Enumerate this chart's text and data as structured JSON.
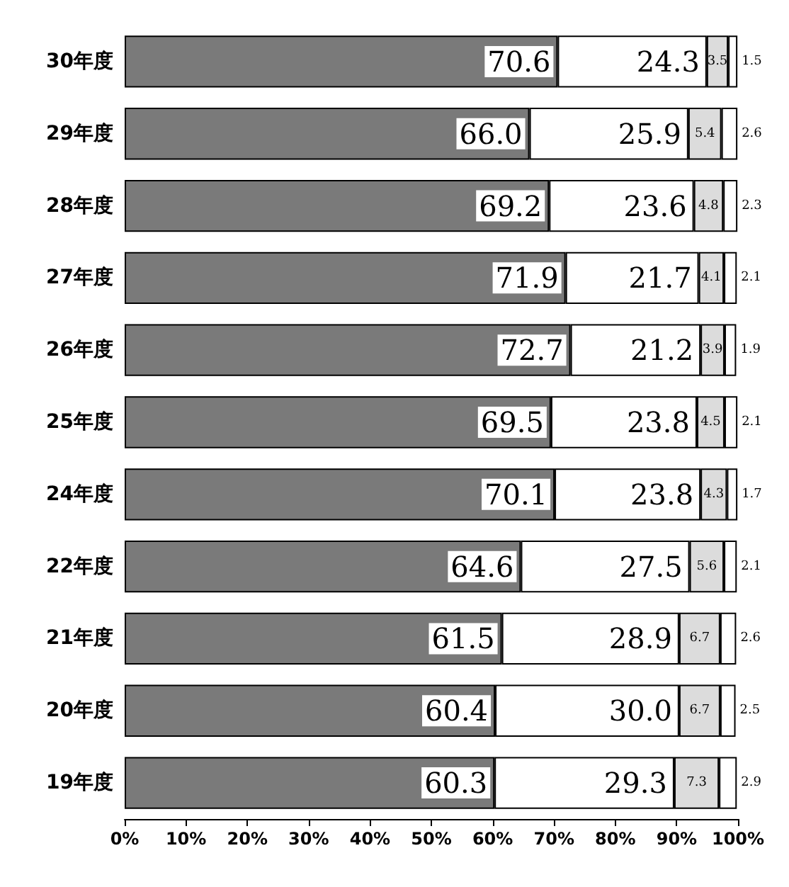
{
  "chart_data": {
    "type": "bar",
    "orientation": "horizontal",
    "stacked": true,
    "grid": false,
    "categories": [
      "30年度",
      "29年度",
      "28年度",
      "27年度",
      "26年度",
      "25年度",
      "24年度",
      "22年度",
      "21年度",
      "20年度",
      "19年度"
    ],
    "series": [
      {
        "color": "#7a7a7a",
        "values": [
          70.6,
          66.0,
          69.2,
          71.9,
          72.7,
          69.5,
          70.1,
          64.6,
          61.5,
          60.4,
          60.3
        ],
        "value_labels": [
          "70.6",
          "66.0",
          "69.2",
          "71.9",
          "72.7",
          "69.5",
          "70.1",
          "64.6",
          "61.5",
          "60.4",
          "60.3"
        ]
      },
      {
        "color": "#ffffff",
        "values": [
          24.3,
          25.9,
          23.6,
          21.7,
          21.2,
          23.8,
          23.8,
          27.5,
          28.9,
          30.0,
          29.3
        ],
        "value_labels": [
          "24.3",
          "25.9",
          "23.6",
          "21.7",
          "21.2",
          "23.8",
          "23.8",
          "27.5",
          "28.9",
          "30.0",
          "29.3"
        ]
      },
      {
        "color": "#dcdcdc",
        "values": [
          3.5,
          5.4,
          4.8,
          4.1,
          3.9,
          4.5,
          4.3,
          5.6,
          6.7,
          6.7,
          7.3
        ],
        "value_labels": [
          "3.5",
          "5.4",
          "4.8",
          "4.1",
          "3.9",
          "4.5",
          "4.3",
          "5.6",
          "6.7",
          "6.7",
          "7.3"
        ]
      },
      {
        "color": "#ffffff",
        "values": [
          1.5,
          2.6,
          2.3,
          2.1,
          1.9,
          2.1,
          1.7,
          2.1,
          2.6,
          2.5,
          2.9
        ],
        "value_labels": [
          "1.5",
          "2.6",
          "2.3",
          "2.1",
          "1.9",
          "2.1",
          "1.7",
          "2.1",
          "2.6",
          "2.5",
          "2.9"
        ]
      }
    ],
    "xlim": [
      0,
      100
    ],
    "xticks": [
      {
        "value": 0,
        "label": "0%"
      },
      {
        "value": 10,
        "label": "10%"
      },
      {
        "value": 20,
        "label": "20%"
      },
      {
        "value": 30,
        "label": "30%"
      },
      {
        "value": 40,
        "label": "40%"
      },
      {
        "value": 50,
        "label": "50%"
      },
      {
        "value": 60,
        "label": "60%"
      },
      {
        "value": 70,
        "label": "70%"
      },
      {
        "value": 80,
        "label": "80%"
      },
      {
        "value": 90,
        "label": "90%"
      },
      {
        "value": 100,
        "label": "100%"
      }
    ]
  }
}
